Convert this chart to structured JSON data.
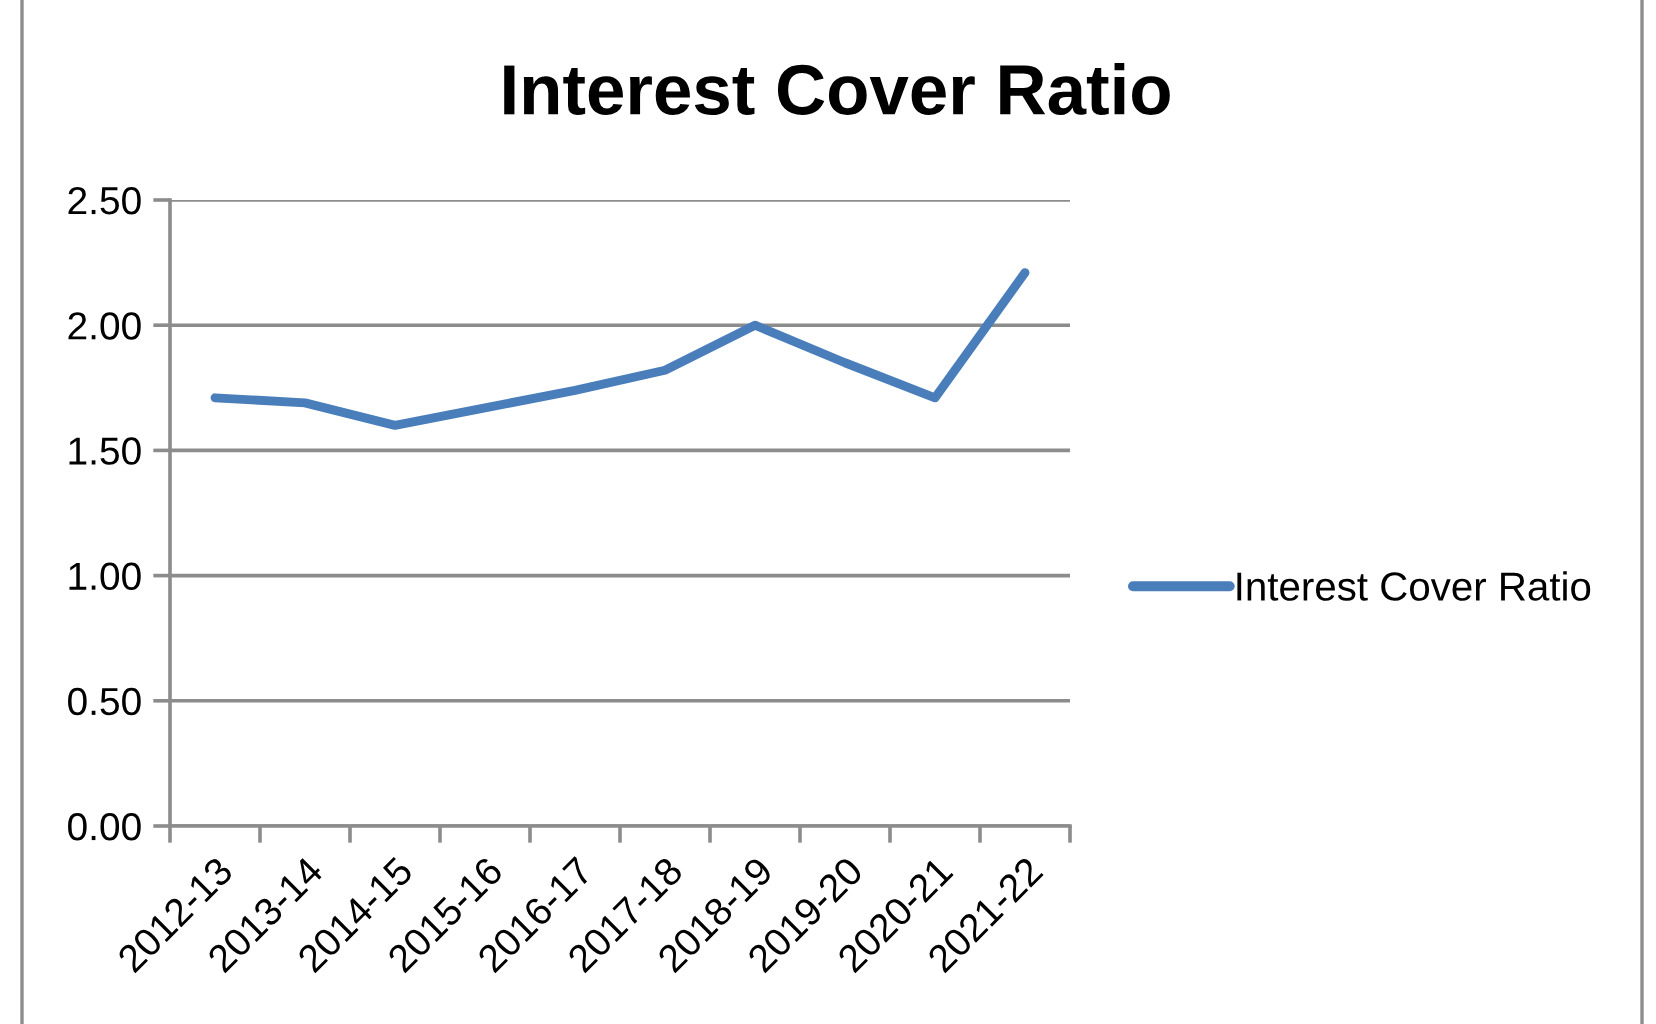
{
  "chart_data": {
    "type": "line",
    "title": "Interest Cover Ratio",
    "categories": [
      "2012-13",
      "2013-14",
      "2014-15",
      "2015-16",
      "2016-17",
      "2017-18",
      "2018-19",
      "2019-20",
      "2020-21",
      "2021-22"
    ],
    "series": [
      {
        "name": "Interest Cover Ratio",
        "color": "#4a7ebb",
        "values": [
          1.71,
          1.69,
          1.6,
          1.67,
          1.74,
          1.82,
          2.0,
          1.85,
          1.71,
          2.21
        ]
      }
    ],
    "ylim": [
      0,
      2.5
    ],
    "yticks": [
      {
        "value": 0,
        "label": "0.00"
      },
      {
        "value": 0.5,
        "label": "0.50"
      },
      {
        "value": 1,
        "label": "1.00"
      },
      {
        "value": 1.5,
        "label": "1.50"
      },
      {
        "value": 2,
        "label": "2.00"
      },
      {
        "value": 2.5,
        "label": "2.50"
      }
    ],
    "grid": "y",
    "legend": "right"
  }
}
